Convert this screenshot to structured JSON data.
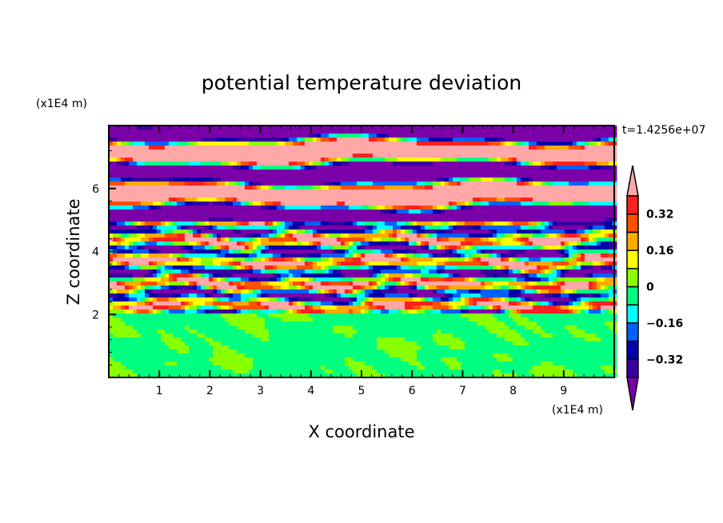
{
  "chart_data": {
    "type": "heatmap",
    "title": "potential temperature deviation",
    "xlabel": "X coordinate",
    "ylabel": "Z coordinate",
    "x_unit": "(x1E4 m)",
    "y_unit": "(x1E4 m)",
    "time_label": "t=1.4256e+07",
    "xlim": [
      0,
      10
    ],
    "ylim": [
      0,
      8
    ],
    "xticks": [
      "1",
      "2",
      "3",
      "4",
      "5",
      "6",
      "7",
      "8",
      "9"
    ],
    "yticks": [
      "2",
      "4",
      "6"
    ],
    "colorbar": {
      "levels": [
        -0.4,
        -0.32,
        -0.24,
        -0.16,
        -0.08,
        0,
        0.08,
        0.16,
        0.24,
        0.32,
        0.4
      ],
      "colors": [
        "#3a009f",
        "#0000a8",
        "#0060ff",
        "#00ffff",
        "#00ff80",
        "#88ff00",
        "#ffff00",
        "#ffaa00",
        "#ff5000",
        "#ff2020"
      ],
      "over_color": "#ffa8a8",
      "under_color": "#7a00a8",
      "tick_labels": [
        {
          "value": 0.32,
          "label": "0.32"
        },
        {
          "value": 0.16,
          "label": "0.16"
        },
        {
          "value": 0,
          "label": "0"
        },
        {
          "value": -0.16,
          "label": "−0.16"
        },
        {
          "value": -0.32,
          "label": "−0.32"
        }
      ]
    },
    "structure": "Below z=2: near-zero (green/yellow-green swirls); z=2-5: turbulent mixed layers; above z=5: alternating strong positive (pink) and negative (purple) horizontal bands"
  }
}
